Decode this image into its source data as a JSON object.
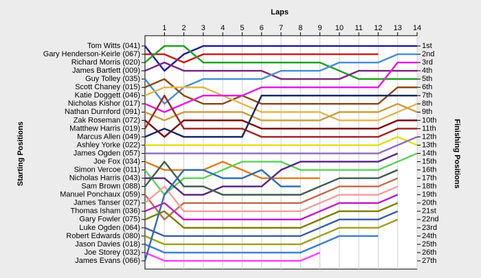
{
  "chart_data": {
    "type": "line",
    "title": "Laps",
    "y_label": "Starting Positions",
    "y2_label": "Finishing Positions",
    "x": [
      0,
      1,
      2,
      3,
      4,
      5,
      6,
      7,
      8,
      9,
      10,
      11,
      12,
      13,
      14
    ],
    "xlim": [
      0,
      14
    ],
    "xticks": [
      1,
      2,
      3,
      4,
      5,
      6,
      7,
      8,
      9,
      10,
      11,
      12,
      13,
      14
    ],
    "ylim": [
      1,
      27
    ],
    "y2lim": [
      1,
      27
    ],
    "y2ticks": [
      {
        "value": 1,
        "label": "1st"
      },
      {
        "value": 2,
        "label": "2nd"
      },
      {
        "value": 3,
        "label": "3rd"
      },
      {
        "value": 4,
        "label": "4th"
      },
      {
        "value": 5,
        "label": "5th"
      },
      {
        "value": 6,
        "label": "6th"
      },
      {
        "value": 7,
        "label": "7th"
      },
      {
        "value": 8,
        "label": "8th"
      },
      {
        "value": 9,
        "label": "9th"
      },
      {
        "value": 10,
        "label": "10th"
      },
      {
        "value": 11,
        "label": "11th"
      },
      {
        "value": 12,
        "label": "12th"
      },
      {
        "value": 13,
        "label": "13th"
      },
      {
        "value": 14,
        "label": "14th"
      },
      {
        "value": 15,
        "label": "15th"
      },
      {
        "value": 16,
        "label": "16th"
      },
      {
        "value": 17,
        "label": "17th"
      },
      {
        "value": 18,
        "label": "18th"
      },
      {
        "value": 19,
        "label": "19th"
      },
      {
        "value": 20,
        "label": "20th"
      },
      {
        "value": 21,
        "label": "21st"
      },
      {
        "value": 22,
        "label": "22nd"
      },
      {
        "value": 23,
        "label": "23rd"
      },
      {
        "value": 24,
        "label": "24th"
      },
      {
        "value": 25,
        "label": "25th"
      },
      {
        "value": 26,
        "label": "26th"
      },
      {
        "value": 27,
        "label": "27th"
      }
    ],
    "grid": true,
    "series": [
      {
        "name": "Tom Witts (041)",
        "color": "#1f1f99",
        "values": [
          1,
          4,
          2,
          1,
          1,
          1,
          1,
          1,
          1,
          1,
          1,
          1,
          1,
          1,
          1
        ]
      },
      {
        "name": "Gary Henderson-Keirle (067)",
        "color": "#c42020",
        "values": [
          2,
          2,
          3,
          2,
          2,
          2,
          2,
          2,
          2,
          2,
          2,
          2,
          2,
          null,
          null
        ]
      },
      {
        "name": "Richard Morris (020)",
        "color": "#22a022",
        "values": [
          3,
          1,
          1,
          3,
          3,
          3,
          3,
          3,
          3,
          3,
          4,
          5,
          5,
          5,
          5
        ]
      },
      {
        "name": "James Bartlett (009)",
        "color": "#7a2a7a",
        "values": [
          4,
          3,
          4,
          4,
          4,
          4,
          4,
          5,
          5,
          5,
          5,
          4,
          4,
          4,
          4
        ]
      },
      {
        "name": "Guy Tolley (035)",
        "color": "#4a90d0",
        "values": [
          5,
          8,
          6,
          5,
          5,
          5,
          5,
          4,
          4,
          4,
          3,
          3,
          3,
          2,
          2
        ]
      },
      {
        "name": "Scott Chaney (015)",
        "color": "#8b4a1a",
        "values": [
          6,
          5,
          7,
          8,
          8,
          7,
          8,
          8,
          8,
          8,
          8,
          8,
          8,
          6,
          6
        ]
      },
      {
        "name": "Katie Doggett (046)",
        "color": "#e0b850",
        "values": [
          7,
          6,
          6,
          6,
          7,
          8,
          9,
          9,
          9,
          9,
          10,
          10,
          10,
          9,
          8
        ]
      },
      {
        "name": "Nicholas Kishor (017)",
        "color": "#e020e0",
        "values": [
          8,
          9,
          8,
          7,
          7,
          7,
          6,
          6,
          6,
          6,
          6,
          6,
          6,
          3,
          3
        ]
      },
      {
        "name": "Nathan Durnford (091)",
        "color": "#c8a040",
        "values": [
          9,
          10,
          9,
          9,
          9,
          9,
          10,
          10,
          10,
          10,
          9,
          9,
          9,
          8,
          9
        ]
      },
      {
        "name": "Zak Roseman (072)",
        "color": "#7a0a0a",
        "values": [
          10,
          12,
          10,
          10,
          10,
          10,
          11,
          11,
          11,
          11,
          11,
          11,
          11,
          10,
          10
        ]
      },
      {
        "name": "Matthew Harris (019)",
        "color": "#a02828",
        "values": [
          11,
          7,
          11,
          11,
          11,
          11,
          12,
          12,
          12,
          12,
          12,
          12,
          12,
          11,
          11
        ]
      },
      {
        "name": "Marcus Allen (049)",
        "color": "#1a2a60",
        "values": [
          12,
          11,
          12,
          12,
          12,
          12,
          7,
          7,
          7,
          7,
          7,
          7,
          7,
          7,
          7
        ]
      },
      {
        "name": "Ashley Yorke (022)",
        "color": "#e0e020",
        "values": [
          13,
          13,
          13,
          13,
          13,
          13,
          13,
          13,
          13,
          13,
          13,
          13,
          13,
          12,
          13
        ]
      },
      {
        "name": "James Ogden (057)",
        "color": "#9070c0",
        "values": [
          14,
          14,
          14,
          14,
          14,
          14,
          14,
          14,
          14,
          14,
          14,
          14,
          14,
          13,
          12
        ]
      },
      {
        "name": "Joe Fox (034)",
        "color": "#e08020",
        "values": [
          15,
          16,
          16,
          16,
          15,
          16,
          17,
          17,
          17,
          17,
          null,
          null,
          null,
          null,
          null
        ]
      },
      {
        "name": "Simon Vercoe (011)",
        "color": "#60d060",
        "values": [
          16,
          19,
          17,
          17,
          16,
          15,
          15,
          15,
          16,
          16,
          16,
          16,
          16,
          15,
          14
        ]
      },
      {
        "name": "Nicholas Harris (043)",
        "color": "#5a2a80",
        "values": [
          17,
          17,
          19,
          19,
          18,
          18,
          18,
          16,
          15,
          15,
          15,
          15,
          15,
          14,
          null
        ]
      },
      {
        "name": "Sam Brown (088)",
        "color": "#406050",
        "values": [
          18,
          15,
          18,
          18,
          19,
          19,
          19,
          19,
          19,
          18,
          17,
          17,
          17,
          16,
          null
        ]
      },
      {
        "name": "Manuel Ponchaux (059)",
        "color": "#c07050",
        "values": [
          19,
          22,
          20,
          20,
          20,
          20,
          20,
          20,
          20,
          19,
          18,
          18,
          18,
          17,
          null
        ]
      },
      {
        "name": "James Tanser (027)",
        "color": "#f0a0a0",
        "values": [
          20,
          18,
          21,
          21,
          21,
          21,
          21,
          21,
          21,
          20,
          19,
          19,
          19,
          18,
          null
        ]
      },
      {
        "name": "Thomas Isham (036)",
        "color": "#c020c0",
        "values": [
          21,
          20,
          22,
          22,
          22,
          22,
          22,
          22,
          22,
          21,
          20,
          20,
          20,
          19,
          null
        ]
      },
      {
        "name": "Gary Fowler (075)",
        "color": "#808000",
        "values": [
          22,
          21,
          23,
          23,
          23,
          23,
          23,
          23,
          23,
          22,
          21,
          21,
          21,
          20,
          null
        ]
      },
      {
        "name": "Luke Ogden (064)",
        "color": "#4060a0",
        "values": [
          23,
          24,
          24,
          24,
          24,
          24,
          24,
          24,
          24,
          23,
          22,
          22,
          22,
          21,
          null
        ]
      },
      {
        "name": "Robert Edwards (080)",
        "color": "#a0a020",
        "values": [
          24,
          25,
          25,
          25,
          25,
          25,
          25,
          25,
          25,
          24,
          23,
          23,
          23,
          22,
          null
        ]
      },
      {
        "name": "Jason Davies (018)",
        "color": "#4080d0",
        "values": [
          25,
          26,
          26,
          26,
          26,
          26,
          26,
          26,
          26,
          25,
          24,
          24,
          24,
          null,
          null
        ]
      },
      {
        "name": "Joe Storey (032)",
        "color": "#ff40ff",
        "values": [
          26,
          27,
          27,
          27,
          27,
          27,
          27,
          27,
          27,
          26,
          null,
          null,
          null,
          null,
          null
        ]
      },
      {
        "name": "James Evans (066)",
        "color": "#3070b0",
        "values": [
          27,
          19,
          16,
          16,
          17,
          17,
          16,
          18,
          18,
          null,
          null,
          null,
          null,
          null,
          null
        ]
      }
    ]
  }
}
